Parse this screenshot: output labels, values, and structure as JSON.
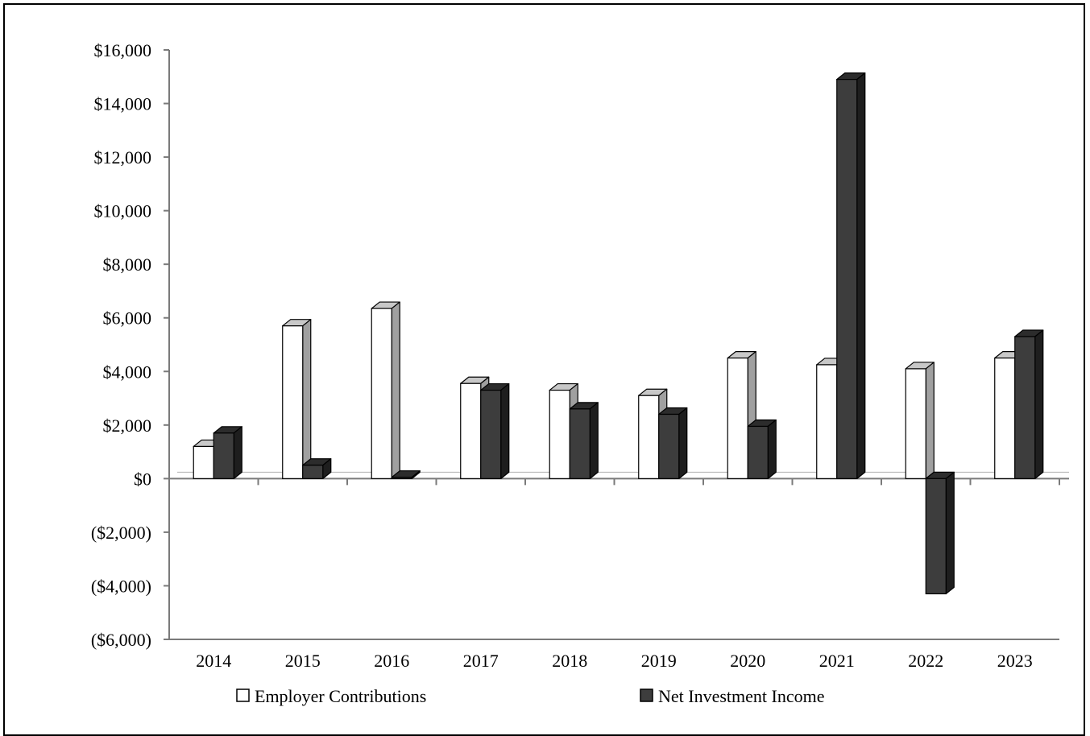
{
  "chart_data": {
    "type": "bar",
    "title": "",
    "xlabel": "",
    "ylabel": "",
    "categories": [
      "2014",
      "2015",
      "2016",
      "2017",
      "2018",
      "2019",
      "2020",
      "2021",
      "2022",
      "2023"
    ],
    "series": [
      {
        "name": "Employer Contributions",
        "values": [
          1200,
          5700,
          6350,
          3550,
          3300,
          3100,
          4500,
          4250,
          4100,
          4500
        ],
        "color": "#ffffff"
      },
      {
        "name": "Net Investment Income",
        "values": [
          1700,
          500,
          50,
          3300,
          2600,
          2400,
          1950,
          14900,
          -4300,
          5300
        ],
        "color": "#3d3d3d"
      }
    ],
    "ylim": [
      -6000,
      16000
    ],
    "yticks": [
      "$16,000",
      "$14,000",
      "$12,000",
      "$10,000",
      "$8,000",
      "$6,000",
      "$4,000",
      "$2,000",
      "$0",
      "($2,000)",
      "($4,000)",
      "($6,000)"
    ],
    "ytick_values": [
      16000,
      14000,
      12000,
      10000,
      8000,
      6000,
      4000,
      2000,
      0,
      -2000,
      -4000,
      -6000
    ],
    "grid": false,
    "legend_position": "bottom",
    "style": "3d-columns"
  }
}
